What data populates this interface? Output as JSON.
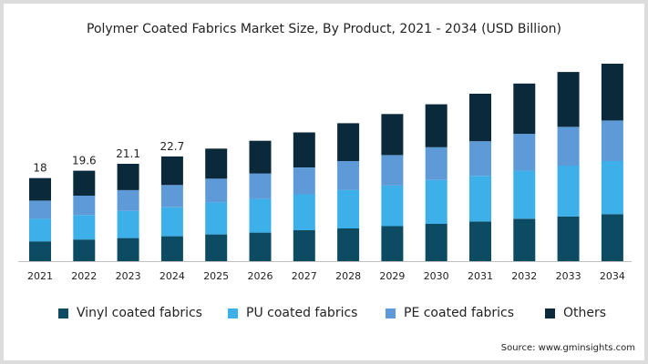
{
  "chart_data": {
    "type": "bar",
    "stacked": true,
    "title": "Polymer Coated Fabrics Market Size, By Product, 2021 - 2034 (USD Billion)",
    "categories": [
      "2021",
      "2022",
      "2023",
      "2024",
      "2025",
      "2026",
      "2027",
      "2028",
      "2029",
      "2030",
      "2031",
      "2032",
      "2033",
      "2034"
    ],
    "series": [
      {
        "name": "Vinyl coated fabrics",
        "color": "#0d4b63",
        "values": [
          4.3,
          4.7,
          5.0,
          5.4,
          5.8,
          6.2,
          6.7,
          7.1,
          7.6,
          8.1,
          8.6,
          9.2,
          9.7,
          10.2
        ]
      },
      {
        "name": "PU coated fabrics",
        "color": "#3db0ea",
        "values": [
          4.9,
          5.3,
          5.9,
          6.3,
          6.9,
          7.3,
          7.8,
          8.3,
          8.8,
          9.5,
          9.9,
          10.4,
          11.0,
          11.5
        ]
      },
      {
        "name": "PE coated fabrics",
        "color": "#5e9ad8",
        "values": [
          3.9,
          4.2,
          4.5,
          4.8,
          5.2,
          5.5,
          5.8,
          6.3,
          6.6,
          7.1,
          7.5,
          8.0,
          8.4,
          8.8
        ]
      },
      {
        "name": "Others",
        "color": "#0a2a3b",
        "values": [
          4.9,
          5.4,
          5.7,
          6.2,
          6.5,
          7.1,
          7.6,
          8.2,
          8.9,
          9.3,
          10.3,
          10.9,
          11.9,
          12.3
        ]
      }
    ],
    "data_labels": [
      "18",
      "19.6",
      "21.1",
      "22.7"
    ],
    "legend_position": "bottom",
    "grid": false
  },
  "source": "Source: www.gminsights.com"
}
